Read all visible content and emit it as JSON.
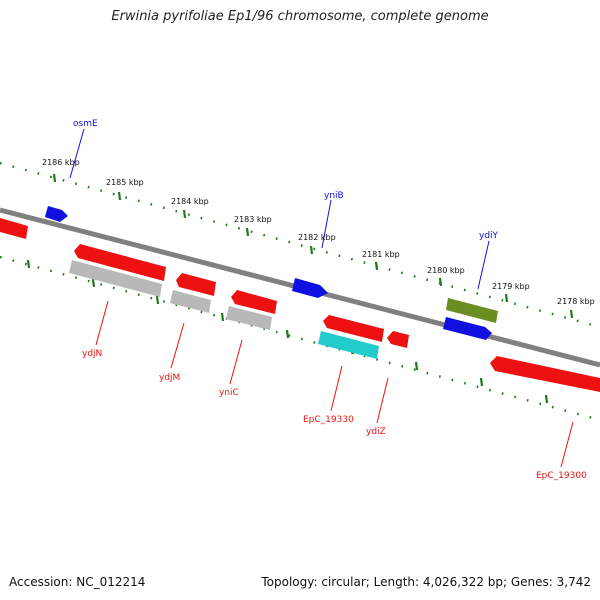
{
  "title": "Erwinia pyrifoliae Ep1/96 chromosome, complete genome",
  "footer": {
    "accession": "Accession: NC_012214",
    "stats": "Topology: circular; Length: 4,026,322 bp; Genes: 3,742"
  },
  "scale_labels": [
    "2186 kbp",
    "2185 kbp",
    "2184 kbp",
    "2183 kbp",
    "2182 kbp",
    "2181 kbp",
    "2180 kbp",
    "2179 kbp",
    "2178 kbp"
  ],
  "colors": {
    "forward_gene": "#1010e0",
    "reverse_gene": "#ee1111",
    "pseudo_gene": "#b8b8b8",
    "rna_gene": "#22cccc",
    "olive_gene": "#6b8e23",
    "backbone": "#808080",
    "tick": "#1a7a1a"
  },
  "gene_labels": {
    "osmE": "osmE",
    "yniB": "yniB",
    "ydiY": "ydiY",
    "ydjN": "ydjN",
    "ydjM": "ydjM",
    "yniC": "yniC",
    "EpC_19330": "EpC_19330",
    "ydiZ": "ydiZ",
    "EpC_19300": "EpC_19300"
  }
}
